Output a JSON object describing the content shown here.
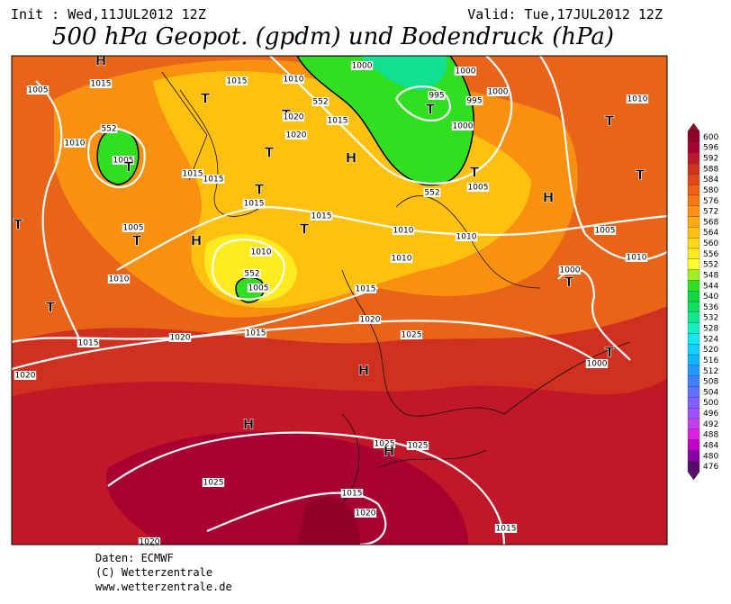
{
  "header": {
    "init": "Init : Wed,11JUL2012 12Z",
    "valid": "Valid: Tue,17JUL2012 12Z",
    "title": "500 hPa Geopot. (gpdm) und Bodendruck (hPa)"
  },
  "footer": [
    "Daten: ECMWF",
    "(C) Wetterzentrale",
    "www.wetterzentrale.de"
  ],
  "colorbar": {
    "levels": [
      476,
      480,
      484,
      488,
      492,
      496,
      500,
      504,
      508,
      512,
      516,
      520,
      524,
      528,
      532,
      536,
      540,
      544,
      548,
      552,
      556,
      560,
      564,
      568,
      572,
      576,
      580,
      584,
      588,
      592,
      596,
      600
    ],
    "colors": [
      "#5a0a6e",
      "#8a00a8",
      "#c000c8",
      "#e020e0",
      "#c040f0",
      "#a050ff",
      "#8060ff",
      "#6070ff",
      "#4080ff",
      "#2098ff",
      "#10b4ff",
      "#10d0ff",
      "#10e8f0",
      "#10f0c0",
      "#10e890",
      "#10e060",
      "#10d840",
      "#30e020",
      "#a0f020",
      "#ffff30",
      "#ffec20",
      "#ffd818",
      "#ffc010",
      "#ffa810",
      "#ff9010",
      "#f87810",
      "#f06010",
      "#e04818",
      "#d03020",
      "#c01828",
      "#a80030",
      "#900028"
    ]
  },
  "map_labels": [
    "H",
    "1005",
    "1015",
    "1015",
    "1010",
    "1000",
    "1000",
    "1000",
    "995",
    "995",
    "T",
    "1010",
    "T",
    "T",
    "1020",
    "1015",
    "1020",
    "1010",
    "1005",
    "T",
    "T",
    "H",
    "1000",
    "T",
    "1015",
    "1015",
    "T",
    "T",
    "T",
    "1005",
    "1015",
    "1015",
    "T",
    "1005",
    "T",
    "H",
    "T",
    "1010",
    "1010",
    "1005",
    "1010",
    "H",
    "1010",
    "1010",
    "1010",
    "1005",
    "1000",
    "T",
    "T",
    "1015",
    "1020",
    "1025",
    "1015",
    "1015",
    "1020",
    "T",
    "1000",
    "1020",
    "H",
    "H",
    "1025",
    "1025",
    "H",
    "1025",
    "1015",
    "1020",
    "1015",
    "1020",
    "552",
    "552",
    "552",
    "552"
  ]
}
